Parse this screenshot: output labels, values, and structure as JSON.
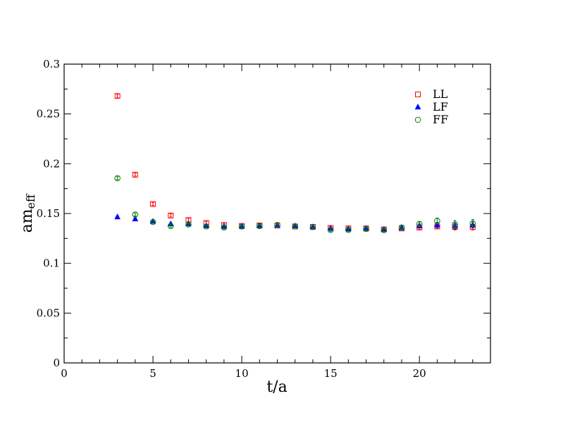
{
  "chart_data": {
    "type": "scatter",
    "xlabel": "t/a",
    "ylabel_main": "am",
    "ylabel_sub": "eff",
    "xlim": [
      0,
      24
    ],
    "ylim": [
      0,
      0.3
    ],
    "x_ticks": [
      0,
      5,
      10,
      15,
      20
    ],
    "x_tick_labels": [
      "0",
      "5",
      "10",
      "15",
      "20"
    ],
    "y_ticks": [
      0,
      0.05,
      0.1,
      0.15,
      0.2,
      0.25,
      0.3
    ],
    "y_tick_labels": [
      "0",
      "0.05",
      "0.1",
      "0.15",
      "0.2",
      "0.25",
      "0.3"
    ],
    "grid": false,
    "legend_position": "top-right",
    "series": [
      {
        "name": "LL",
        "marker": "square-open",
        "color": "#ff0000",
        "x": [
          3,
          4,
          5,
          6,
          7,
          8,
          9,
          10,
          11,
          12,
          13,
          14,
          15,
          16,
          17,
          18,
          19,
          20,
          21,
          22,
          23
        ],
        "y": [
          0.268,
          0.189,
          0.1595,
          0.148,
          0.1435,
          0.1405,
          0.1385,
          0.1375,
          0.138,
          0.138,
          0.137,
          0.1365,
          0.1355,
          0.135,
          0.135,
          0.134,
          0.135,
          0.136,
          0.137,
          0.1365,
          0.1365
        ],
        "err": [
          0.0015,
          0.0015,
          0.0015,
          0.0015,
          0.0015,
          0.0015,
          0.0015,
          0.0015,
          0.0015,
          0.0015,
          0.0015,
          0.0015,
          0.0015,
          0.0015,
          0.0015,
          0.0015,
          0.0015,
          0.002,
          0.002,
          0.003,
          0.003
        ]
      },
      {
        "name": "LF",
        "marker": "triangle-filled",
        "color": "#0000ff",
        "x": [
          3,
          4,
          5,
          6,
          7,
          8,
          9,
          10,
          11,
          12,
          13,
          14,
          15,
          16,
          17,
          18,
          19,
          20,
          21,
          22,
          23
        ],
        "y": [
          0.1465,
          0.1445,
          0.142,
          0.1395,
          0.1395,
          0.1375,
          0.137,
          0.137,
          0.1375,
          0.138,
          0.1375,
          0.1365,
          0.135,
          0.1345,
          0.135,
          0.134,
          0.1355,
          0.1375,
          0.1385,
          0.1375,
          0.1385
        ],
        "err": [
          0.001,
          0.001,
          0.001,
          0.001,
          0.001,
          0.001,
          0.001,
          0.001,
          0.001,
          0.001,
          0.001,
          0.001,
          0.001,
          0.001,
          0.001,
          0.001,
          0.0015,
          0.002,
          0.0025,
          0.003,
          0.003
        ]
      },
      {
        "name": "FF",
        "marker": "circle-open",
        "color": "#008000",
        "x": [
          3,
          4,
          5,
          6,
          7,
          8,
          9,
          10,
          11,
          12,
          13,
          14,
          15,
          16,
          17,
          18,
          19,
          20,
          21,
          22,
          23
        ],
        "y": [
          0.1855,
          0.149,
          0.1415,
          0.1375,
          0.139,
          0.137,
          0.136,
          0.137,
          0.1375,
          0.1385,
          0.137,
          0.1365,
          0.1335,
          0.1335,
          0.1345,
          0.1335,
          0.136,
          0.1395,
          0.1425,
          0.139,
          0.14
        ],
        "err": [
          0.0015,
          0.0015,
          0.0015,
          0.0015,
          0.0015,
          0.0015,
          0.0015,
          0.0015,
          0.0015,
          0.0015,
          0.0015,
          0.0015,
          0.0015,
          0.0015,
          0.0015,
          0.0015,
          0.0015,
          0.002,
          0.003,
          0.004,
          0.004
        ]
      }
    ]
  }
}
